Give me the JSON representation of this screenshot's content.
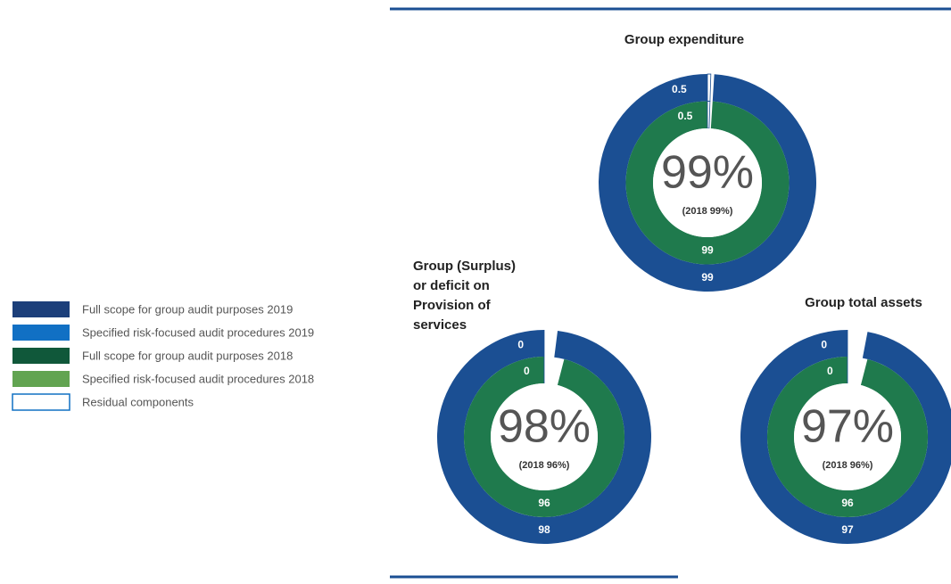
{
  "legend": {
    "items": [
      {
        "name": "Full scope for group audit purposes 2019",
        "color": "#1c3f7a"
      },
      {
        "name": "Specified risk-focused audit procedures 2019",
        "color": "#1170c4"
      },
      {
        "name": "Full scope for group audit purposes 2018",
        "color": "#10583a"
      },
      {
        "name": "Specified risk-focused audit procedures 2018",
        "color": "#62a451"
      },
      {
        "name": "Residual components",
        "color": "#ffffff"
      }
    ]
  },
  "chart_data": [
    {
      "type": "donut",
      "title": [
        "Group expenditure"
      ],
      "center_label": "99%",
      "center_note": "(2018 99%)",
      "series": [
        {
          "values": [
            99,
            0.5
          ],
          "colors": [
            "#1b4f93",
            "#ffffff"
          ]
        },
        {
          "values": [
            99,
            0.5
          ],
          "colors": [
            "#1f7a4d",
            "#ffffff"
          ]
        }
      ]
    },
    {
      "type": "donut",
      "title": [
        "Group (Surplus)",
        "or deficit on",
        "Provision of",
        "services"
      ],
      "center_label": "98%",
      "center_note": "(2018 96%)",
      "series": [
        {
          "values": [
            98,
            0
          ],
          "colors": [
            "#1b4f93",
            "#ffffff"
          ]
        },
        {
          "values": [
            96,
            0
          ],
          "colors": [
            "#1f7a4d",
            "#ffffff"
          ]
        }
      ]
    },
    {
      "type": "donut",
      "title": [
        "Group total assets"
      ],
      "center_label": "97%",
      "center_note": "(2018 96%)",
      "series": [
        {
          "values": [
            97,
            0
          ],
          "colors": [
            "#1b4f93",
            "#ffffff"
          ]
        },
        {
          "values": [
            96,
            0
          ],
          "colors": [
            "#1f7a4d",
            "#ffffff"
          ]
        }
      ]
    }
  ]
}
